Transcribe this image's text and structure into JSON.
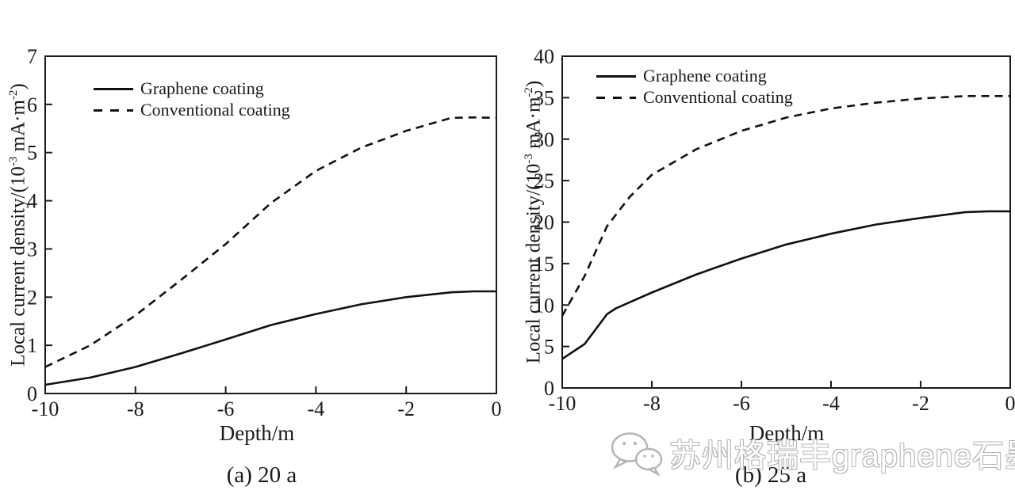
{
  "watermark": {
    "icon": "wechat-icon",
    "text": "苏州格瑞丰graphene石墨烯"
  },
  "chart_data": [
    {
      "type": "line",
      "caption": "(a) 20 a",
      "xlabel": "Depth/m",
      "ylabel": "Local current density/(10⁻³ mA·m⁻²)",
      "ylabel_segments": [
        {
          "text": "Local current density/(10"
        },
        {
          "text": "-3",
          "sup": true
        },
        {
          "text": " mA·m"
        },
        {
          "text": "-2",
          "sup": true
        },
        {
          "text": ")"
        }
      ],
      "xlim": [
        -10,
        0
      ],
      "ylim": [
        0,
        7
      ],
      "xticks": [
        -10,
        -8,
        -6,
        -4,
        -2,
        0
      ],
      "yticks": [
        0,
        1,
        2,
        3,
        4,
        5,
        6,
        7
      ],
      "grid": false,
      "legend_position": "top-left",
      "series": [
        {
          "name": "Graphene coating",
          "line": "solid",
          "points": [
            [
              -10,
              0.18
            ],
            [
              -9,
              0.33
            ],
            [
              -8,
              0.55
            ],
            [
              -7,
              0.83
            ],
            [
              -6,
              1.12
            ],
            [
              -5,
              1.42
            ],
            [
              -4,
              1.65
            ],
            [
              -3,
              1.85
            ],
            [
              -2,
              2.0
            ],
            [
              -1,
              2.1
            ],
            [
              -0.5,
              2.12
            ],
            [
              0,
              2.12
            ]
          ]
        },
        {
          "name": "Conventional coating",
          "line": "dashed",
          "points": [
            [
              -10,
              0.55
            ],
            [
              -9,
              1.0
            ],
            [
              -8,
              1.62
            ],
            [
              -7,
              2.35
            ],
            [
              -6,
              3.1
            ],
            [
              -5,
              3.95
            ],
            [
              -4,
              4.62
            ],
            [
              -3,
              5.1
            ],
            [
              -2,
              5.45
            ],
            [
              -1,
              5.72
            ],
            [
              -0.5,
              5.73
            ],
            [
              0,
              5.72
            ]
          ]
        }
      ]
    },
    {
      "type": "line",
      "caption": "(b) 25 a",
      "xlabel": "Depth/m",
      "ylabel": "Local current density/(10⁻³ mA·m⁻²)",
      "ylabel_segments": [
        {
          "text": "Local current density/(10"
        },
        {
          "text": "-3",
          "sup": true
        },
        {
          "text": " mA·m"
        },
        {
          "text": "-2",
          "sup": true
        },
        {
          "text": ")"
        }
      ],
      "xlim": [
        -10,
        0
      ],
      "ylim": [
        0,
        40
      ],
      "xticks": [
        -10,
        -8,
        -6,
        -4,
        -2,
        0
      ],
      "yticks": [
        0,
        5,
        10,
        15,
        20,
        25,
        30,
        35,
        40
      ],
      "grid": false,
      "legend_position": "top-left",
      "series": [
        {
          "name": "Graphene coating",
          "line": "solid",
          "points": [
            [
              -10,
              3.5
            ],
            [
              -9.5,
              5.3
            ],
            [
              -9,
              8.9
            ],
            [
              -8.8,
              9.6
            ],
            [
              -8,
              11.5
            ],
            [
              -7,
              13.7
            ],
            [
              -6,
              15.6
            ],
            [
              -5,
              17.3
            ],
            [
              -4,
              18.6
            ],
            [
              -3,
              19.7
            ],
            [
              -2,
              20.5
            ],
            [
              -1,
              21.2
            ],
            [
              -0.5,
              21.3
            ],
            [
              0,
              21.3
            ]
          ]
        },
        {
          "name": "Conventional coating",
          "line": "dashed",
          "points": [
            [
              -10,
              8.7
            ],
            [
              -9.5,
              13.5
            ],
            [
              -9,
              19.5
            ],
            [
              -8.5,
              23.0
            ],
            [
              -8,
              25.7
            ],
            [
              -7,
              28.8
            ],
            [
              -6,
              31.0
            ],
            [
              -5,
              32.6
            ],
            [
              -4,
              33.7
            ],
            [
              -3,
              34.4
            ],
            [
              -2,
              34.9
            ],
            [
              -1,
              35.2
            ],
            [
              0,
              35.2
            ]
          ]
        }
      ]
    }
  ]
}
